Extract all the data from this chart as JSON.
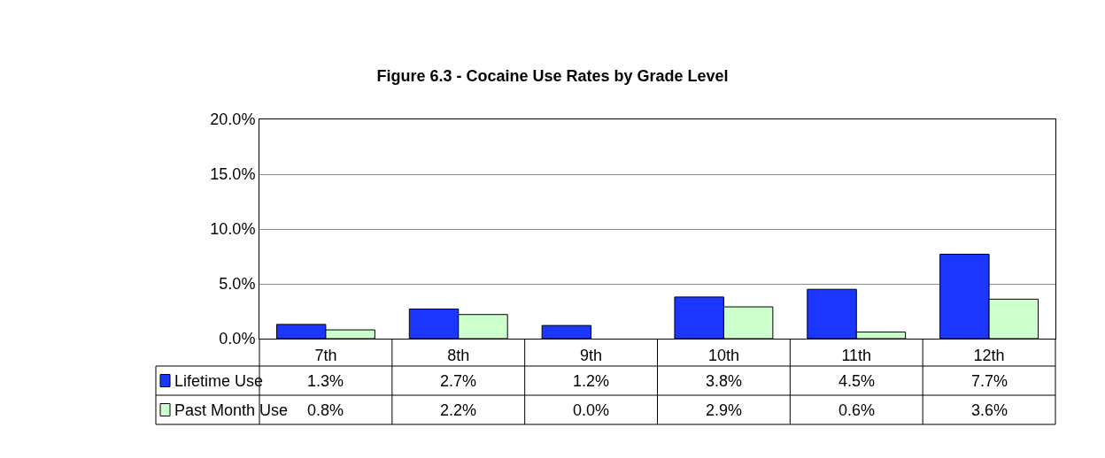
{
  "chart_data": {
    "type": "bar",
    "title": "Figure 6.3 - Cocaine Use Rates by Grade Level",
    "categories": [
      "7th",
      "8th",
      "9th",
      "10th",
      "11th",
      "12th"
    ],
    "series": [
      {
        "name": "Lifetime Use",
        "color": "#1a36ff",
        "values": [
          1.3,
          2.7,
          1.2,
          3.8,
          4.5,
          7.7
        ],
        "value_labels": [
          "1.3%",
          "2.7%",
          "1.2%",
          "3.8%",
          "4.5%",
          "7.7%"
        ]
      },
      {
        "name": "Past Month Use",
        "color": "#ccffcc",
        "values": [
          0.8,
          2.2,
          0.0,
          2.9,
          0.6,
          3.6
        ],
        "value_labels": [
          "0.8%",
          "2.2%",
          "0.0%",
          "2.9%",
          "0.6%",
          "3.6%"
        ]
      }
    ],
    "ylim": [
      0,
      20
    ],
    "yticks": [
      {
        "value": 0,
        "label": "0.0%"
      },
      {
        "value": 5,
        "label": "5.0%"
      },
      {
        "value": 10,
        "label": "10.0%"
      },
      {
        "value": 15,
        "label": "15.0%"
      },
      {
        "value": 20,
        "label": "20.0%"
      }
    ],
    "grid": "y",
    "legend": "bottom"
  }
}
